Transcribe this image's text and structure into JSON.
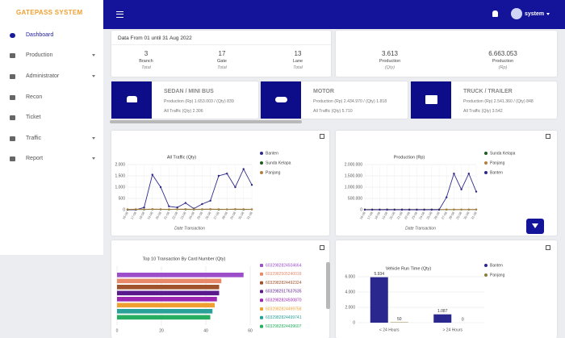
{
  "sidebar": {
    "brand": "GATEPASS SYSTEM",
    "menu": [
      "Dashboard",
      "Production",
      "Administrator",
      "Recon",
      "Ticket",
      "Traffic",
      "Report"
    ]
  },
  "topbar": {
    "user": "system"
  },
  "summary": {
    "period": "Data From 01 until 31 Aug 2022",
    "stats": [
      {
        "value": "3",
        "label": "Branch",
        "sub": "Total"
      },
      {
        "value": "17",
        "label": "Gate",
        "sub": "Total"
      },
      {
        "value": "13",
        "label": "Lane",
        "sub": "Total"
      }
    ]
  },
  "production": [
    {
      "value": "3.613",
      "label": "Production",
      "sub": "(Qty)"
    },
    {
      "value": "6.663.053",
      "label": "Production",
      "sub": "(Rp)"
    }
  ],
  "vehicles": [
    {
      "title": "SEDAN / MINI BUS",
      "production": "Production (Rp) 1.653.003 / (Qty) 839",
      "traffic": "All Traffic (Qty) 2.306"
    },
    {
      "title": "MOTOR",
      "production": "Production (Rp) 2.434.970 / (Qty) 1.818",
      "traffic": "All Traffic (Qty) 5.710"
    },
    {
      "title": "TRUCK / TRAILER",
      "production": "Production (Rp) 2.541.360 / (Qty) 848",
      "traffic": "All Traffic (Qty) 3.542"
    }
  ],
  "chart_data": [
    {
      "type": "line",
      "title": "All Traffic (Qty)",
      "x_label": "Date Transaction",
      "categories": [
        "16-08",
        "17-08",
        "18-08",
        "19-08",
        "20-08",
        "21-08",
        "22-08",
        "23-08",
        "24-08",
        "25-08",
        "26-08",
        "27-08",
        "28-08",
        "29-08",
        "30-08",
        "31-08"
      ],
      "series": [
        {
          "name": "Banten",
          "color": "#2e2a8a",
          "values": [
            0,
            0,
            100,
            1550,
            1000,
            150,
            100,
            300,
            50,
            250,
            400,
            1500,
            1600,
            1000,
            1800,
            1100
          ]
        },
        {
          "name": "Sunda Kelapa",
          "color": "#1e5b1e",
          "values": [
            10,
            15,
            10,
            20,
            15,
            10,
            20,
            15,
            10,
            15,
            20,
            10,
            15,
            20,
            10,
            15
          ]
        },
        {
          "name": "Panjang",
          "color": "#b08040",
          "values": [
            20,
            25,
            20,
            30,
            25,
            20,
            25,
            30,
            20,
            25,
            30,
            25,
            20,
            30,
            25,
            20
          ]
        }
      ],
      "ylim": [
        0,
        2000
      ],
      "yticks": [
        0,
        500,
        {
          "value": 1000,
          "label": "1.000"
        },
        {
          "value": 1500,
          "label": "1.500"
        },
        {
          "value": 2000,
          "label": "2.000"
        }
      ],
      "grid": true
    },
    {
      "type": "line",
      "title": "Production (Rp)",
      "x_label": "Date Transaction",
      "categories": [
        "16-08",
        "17-08",
        "18-08",
        "19-08",
        "20-08",
        "21-08",
        "22-08",
        "23-08",
        "24-08",
        "25-08",
        "26-08",
        "27-08",
        "28-08",
        "29-08",
        "30-08",
        "31-08"
      ],
      "series": [
        {
          "name": "Sunda Kelapa",
          "color": "#1e5b1e",
          "values": [
            5000,
            8000,
            6000,
            9000,
            7000,
            5000,
            8000,
            6000,
            7000,
            9000,
            6000,
            5000,
            8000,
            7000,
            6000,
            9000
          ]
        },
        {
          "name": "Panjang",
          "color": "#b08040",
          "values": [
            10000,
            12000,
            9000,
            11000,
            10000,
            12000,
            9000,
            11000,
            10000,
            12000,
            9000,
            11000,
            10000,
            12000,
            9000,
            11000
          ]
        },
        {
          "name": "Banten",
          "color": "#2e2a8a",
          "values": [
            0,
            0,
            0,
            0,
            0,
            0,
            0,
            0,
            0,
            0,
            0,
            550000,
            1600000,
            900000,
            1600000,
            800000
          ]
        }
      ],
      "ylim": [
        0,
        2000000
      ],
      "yticks": [
        0,
        {
          "value": 500000,
          "label": "500.000"
        },
        {
          "value": 1000000,
          "label": "1.000.000"
        },
        {
          "value": 1500000,
          "label": "1.500.000"
        },
        {
          "value": 2000000,
          "label": "2.000.000"
        }
      ],
      "grid": true
    },
    {
      "type": "hbar",
      "title": "Top 10 Transaction By Card Number (Qty)",
      "categories": [
        "6032982824504664",
        "6032982505240018",
        "6032982824492324",
        "6032982517637635",
        "6032982824500870",
        "6032982824499758",
        "6032982824499741",
        "6032982824499607"
      ],
      "values": [
        57,
        47,
        46,
        46,
        45,
        44,
        43,
        42
      ],
      "colors": [
        "#9b4dca",
        "#e8896a",
        "#a0522d",
        "#5b1a8c",
        "#9c27b0",
        "#f0a030",
        "#2aa198",
        "#27ae60"
      ],
      "xlim": [
        0,
        60
      ],
      "xticks": [
        0,
        20,
        40,
        60
      ],
      "grid": true
    },
    {
      "type": "grouped_bar",
      "title": "Vehicle Run Time (Qty)",
      "categories": [
        "< 24 Hours",
        "> 24 Hours"
      ],
      "series": [
        {
          "name": "Banten",
          "color": "#2a278f",
          "values": [
            5934,
            1087
          ],
          "value_labels": [
            "5.934",
            "1.087"
          ]
        },
        {
          "name": "Panjang",
          "color": "#8b7d3a",
          "values": [
            50,
            0
          ]
        }
      ],
      "ylim": [
        0,
        6000
      ],
      "yticks": [
        0,
        {
          "value": 2000,
          "label": "2.000"
        },
        {
          "value": 4000,
          "label": "4.000"
        },
        {
          "value": 6000,
          "label": "6.000"
        }
      ],
      "grid": true
    }
  ]
}
